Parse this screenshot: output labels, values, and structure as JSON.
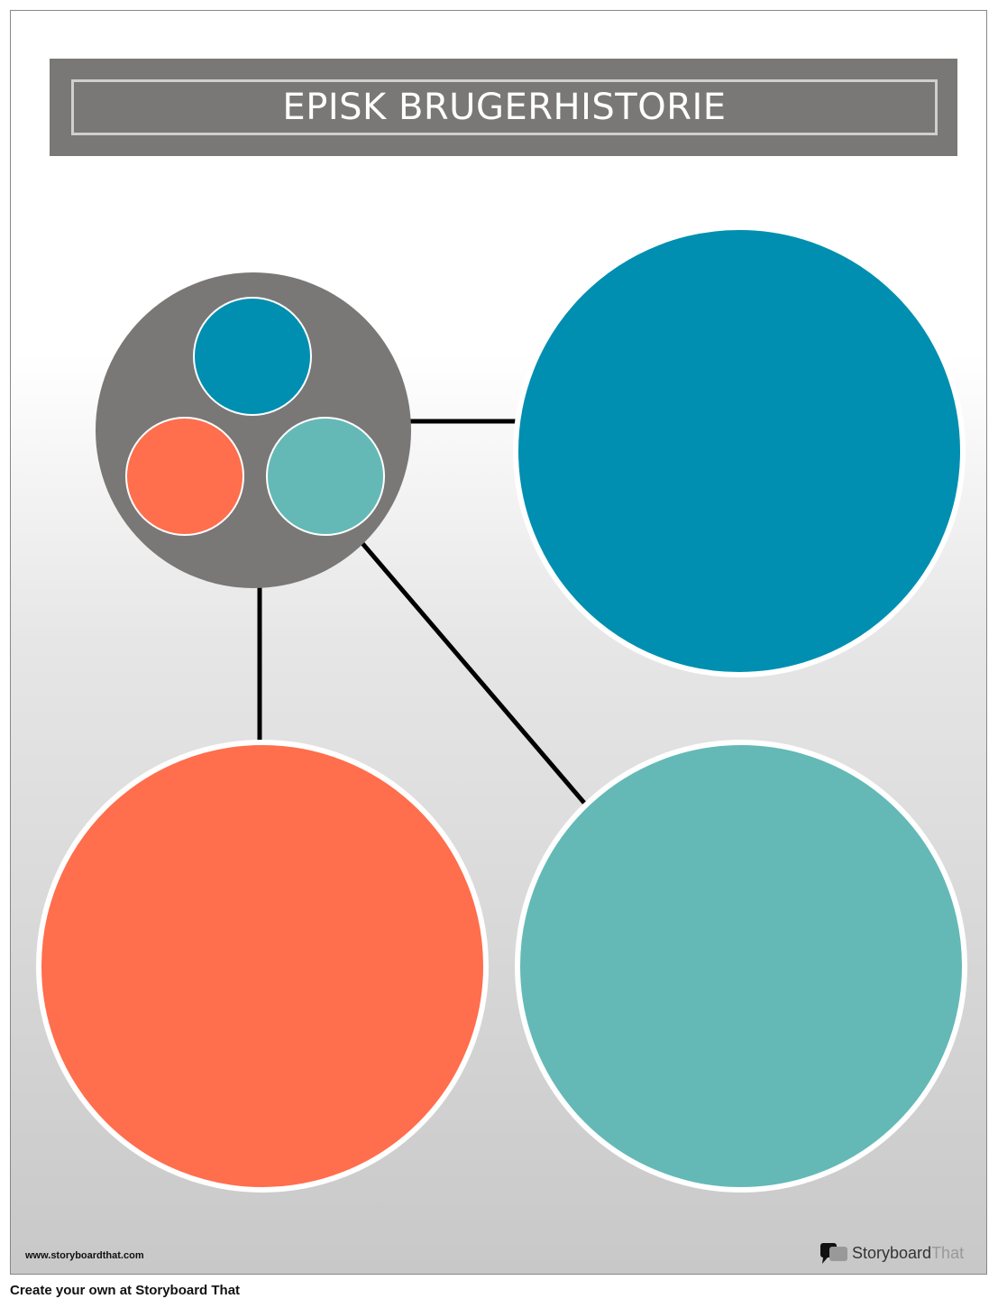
{
  "title": "EPISK BRUGERHISTORIE",
  "watermark_url": "www.storyboardthat.com",
  "logo": {
    "brand_main": "Storyboard",
    "brand_accent": "That"
  },
  "footer": "Create your own at Storyboard That",
  "colors": {
    "blue": "#008fb0",
    "orange": "#ff6e4d",
    "teal": "#64b9b6",
    "gray": "#797876"
  }
}
